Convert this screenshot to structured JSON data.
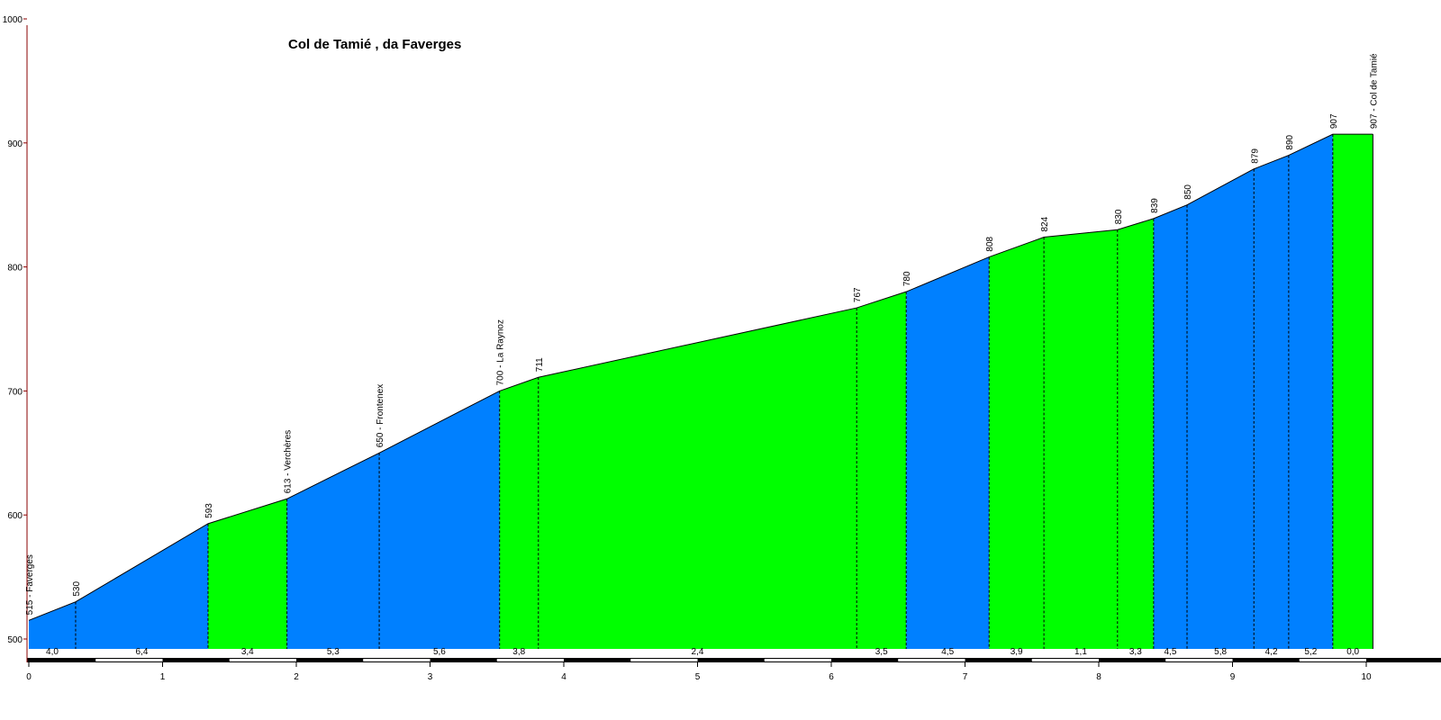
{
  "chart_data": {
    "type": "area",
    "title": "Col de Tamié , da Faverges",
    "xlabel": "",
    "ylabel": "",
    "xlim": [
      0,
      10.6
    ],
    "ylim": [
      490,
      1000
    ],
    "yticks": [
      500,
      600,
      700,
      800,
      900,
      1000
    ],
    "yticks_labels": [
      "500",
      "600",
      "700",
      "800",
      "900",
      "1000"
    ],
    "xticks": [
      0,
      1,
      2,
      3,
      4,
      5,
      6,
      7,
      8,
      9,
      10
    ],
    "xticks_labels": [
      "0",
      "1",
      "2",
      "3",
      "4",
      "5",
      "6",
      "7",
      "8",
      "9",
      "10"
    ],
    "points": [
      {
        "x": 0.0,
        "y": 515,
        "label": "515 - Faverges"
      },
      {
        "x": 0.35,
        "y": 530,
        "label": "530"
      },
      {
        "x": 1.34,
        "y": 593,
        "label": "593"
      },
      {
        "x": 1.93,
        "y": 613,
        "label": "613 - Verchères"
      },
      {
        "x": 2.62,
        "y": 650,
        "label": "650 - Frontenex"
      },
      {
        "x": 3.52,
        "y": 700,
        "label": "700 - La Raynoz"
      },
      {
        "x": 3.81,
        "y": 711,
        "label": "711"
      },
      {
        "x": 6.19,
        "y": 767,
        "label": "767"
      },
      {
        "x": 6.56,
        "y": 780,
        "label": "780"
      },
      {
        "x": 7.18,
        "y": 808,
        "label": "808"
      },
      {
        "x": 7.59,
        "y": 824,
        "label": "824"
      },
      {
        "x": 8.14,
        "y": 830,
        "label": "830"
      },
      {
        "x": 8.41,
        "y": 839,
        "label": "839"
      },
      {
        "x": 8.66,
        "y": 850,
        "label": "850"
      },
      {
        "x": 9.16,
        "y": 879,
        "label": "879"
      },
      {
        "x": 9.42,
        "y": 890,
        "label": "890"
      },
      {
        "x": 9.75,
        "y": 907,
        "label": "907"
      },
      {
        "x": 10.05,
        "y": 907,
        "label": "907 - Col de Tamié"
      }
    ],
    "segments": [
      {
        "grade": "4,0",
        "color": "blue"
      },
      {
        "grade": "6,4",
        "color": "blue"
      },
      {
        "grade": "3,4",
        "color": "green"
      },
      {
        "grade": "5,3",
        "color": "blue"
      },
      {
        "grade": "5,6",
        "color": "blue"
      },
      {
        "grade": "3,8",
        "color": "green"
      },
      {
        "grade": "2,4",
        "color": "green"
      },
      {
        "grade": "3,5",
        "color": "green"
      },
      {
        "grade": "4,5",
        "color": "blue"
      },
      {
        "grade": "3,9",
        "color": "green"
      },
      {
        "grade": "1,1",
        "color": "green"
      },
      {
        "grade": "3,3",
        "color": "green"
      },
      {
        "grade": "4,5",
        "color": "blue"
      },
      {
        "grade": "5,8",
        "color": "blue"
      },
      {
        "grade": "4,2",
        "color": "blue"
      },
      {
        "grade": "5,2",
        "color": "blue"
      },
      {
        "grade": "0,0",
        "color": "green"
      }
    ],
    "colors": {
      "blue": "#0080ff",
      "green": "#00ff00",
      "axis": "#8b0000"
    }
  }
}
